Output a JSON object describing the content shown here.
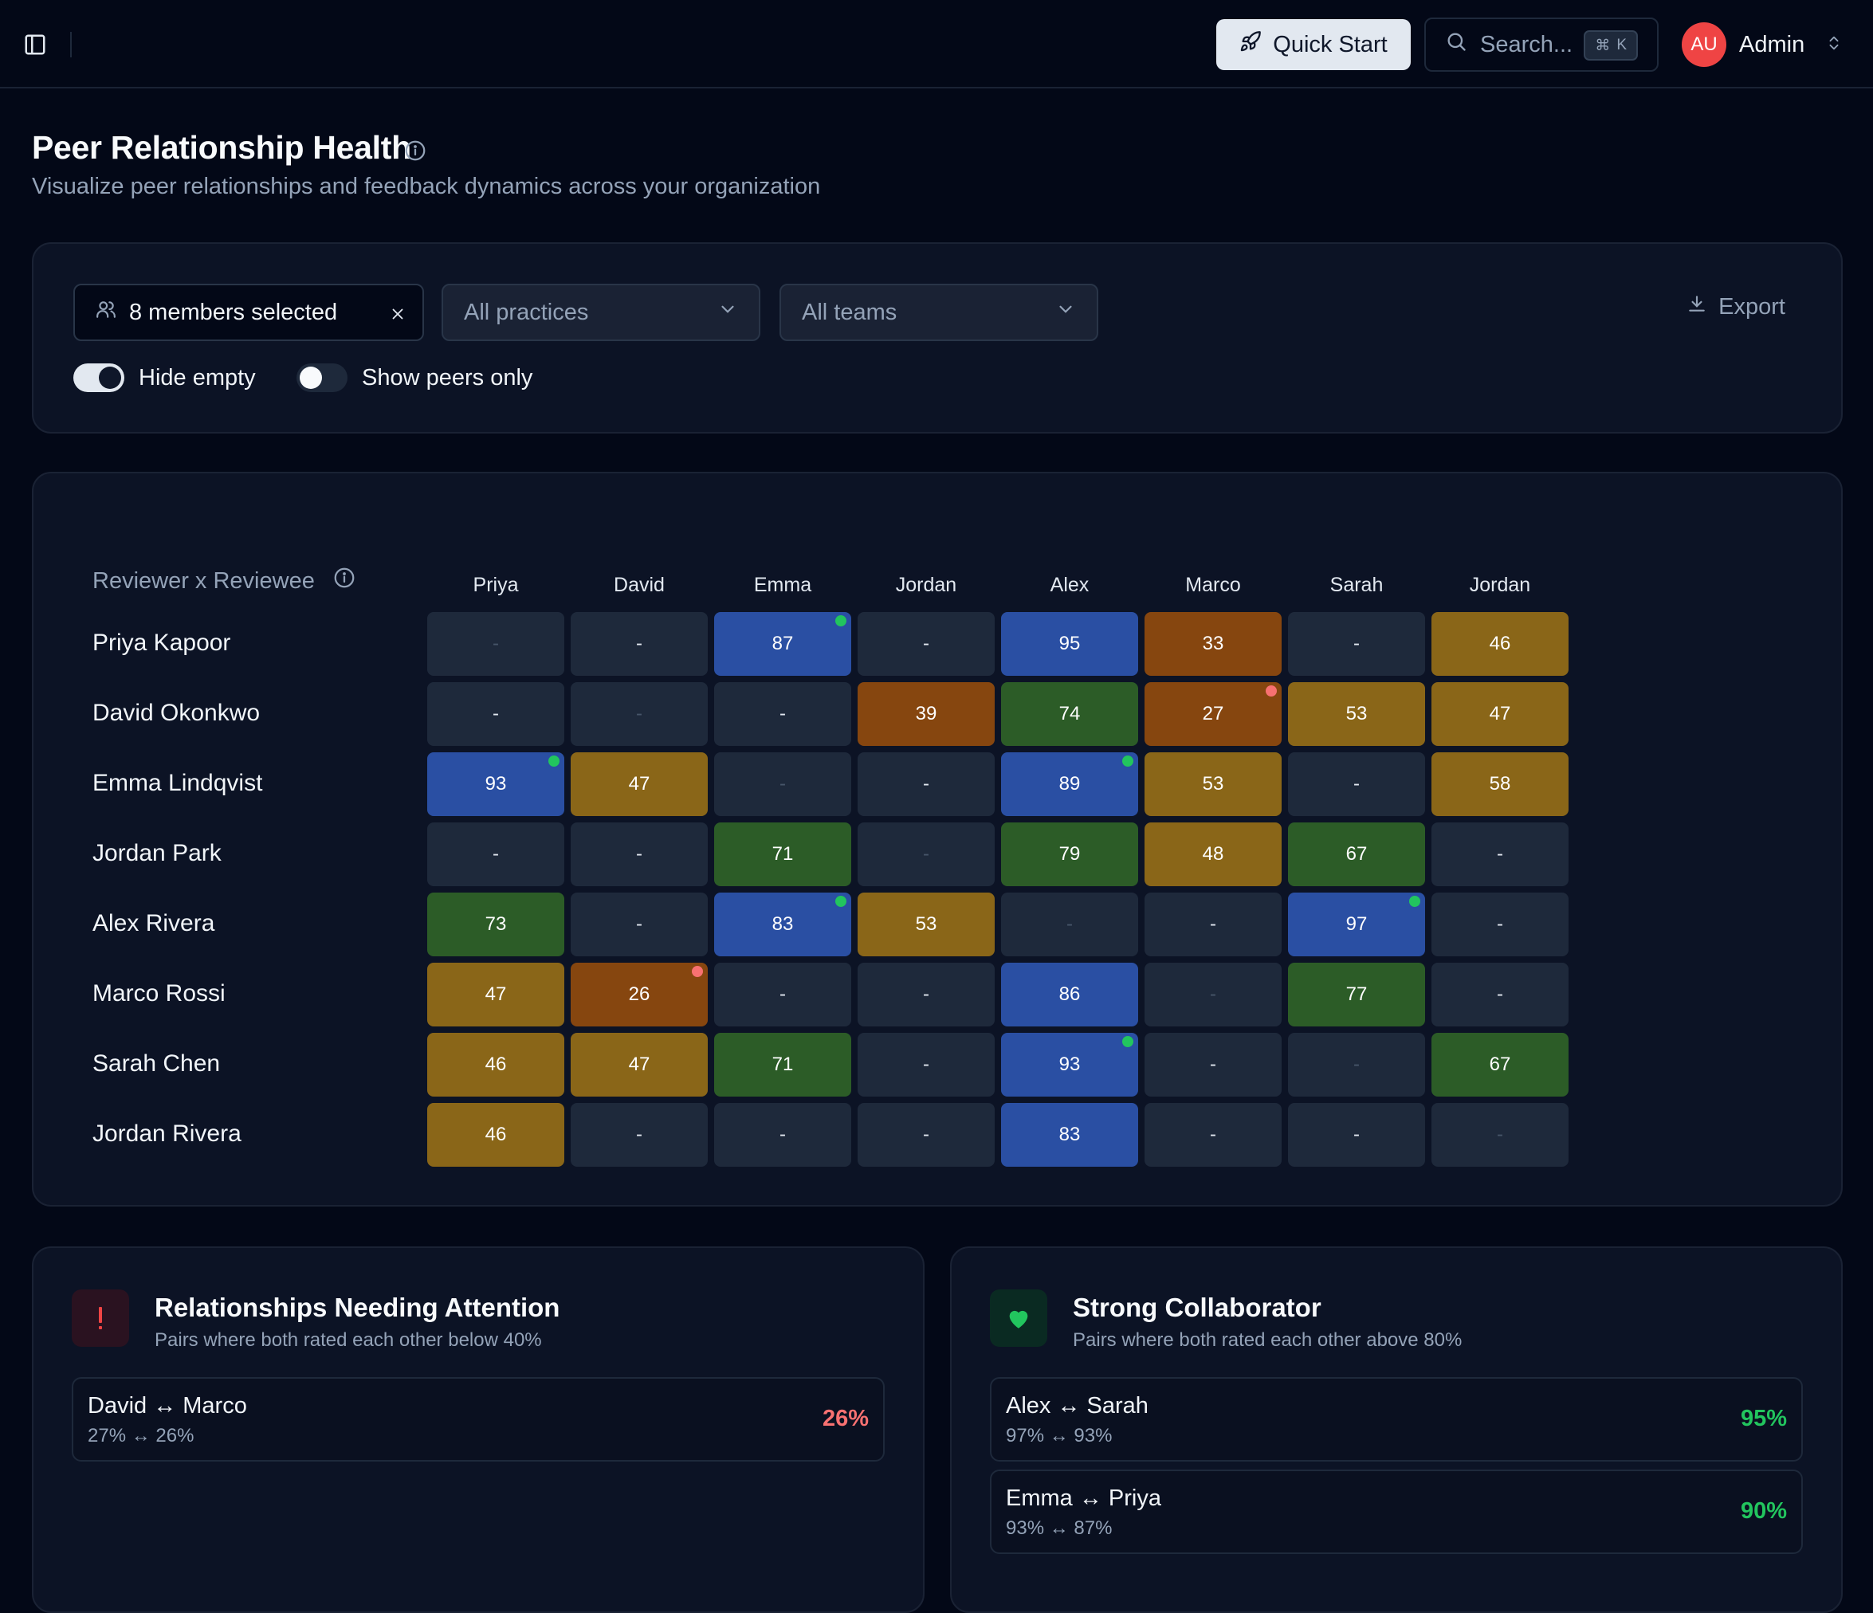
{
  "topbar": {
    "quick_start_label": "Quick Start",
    "search_placeholder": "Search...",
    "search_shortcut_symbol": "⌘",
    "search_shortcut_key": "K",
    "user_initials": "AU",
    "user_name": "Admin"
  },
  "header": {
    "title": "Peer Relationship Health",
    "subtitle": "Visualize peer relationships and feedback dynamics across your organization"
  },
  "filters": {
    "members_label": "8 members selected",
    "practices_label": "All practices",
    "teams_label": "All teams",
    "export_label": "Export",
    "hide_empty_label": "Hide empty",
    "hide_empty_on": true,
    "show_peers_label": "Show peers only",
    "show_peers_on": false
  },
  "matrix": {
    "corner_label": "Reviewer x Reviewee",
    "columns": [
      "Priya",
      "David",
      "Emma",
      "Jordan",
      "Alex",
      "Marco",
      "Sarah",
      "Jordan"
    ],
    "rows": [
      {
        "name": "Priya Kapoor",
        "cells": [
          {
            "v": "-",
            "t": "self"
          },
          {
            "v": "-",
            "t": "empty"
          },
          {
            "v": "87",
            "t": "blue",
            "d": "green"
          },
          {
            "v": "-",
            "t": "empty"
          },
          {
            "v": "95",
            "t": "blue"
          },
          {
            "v": "33",
            "t": "orange"
          },
          {
            "v": "-",
            "t": "empty"
          },
          {
            "v": "46",
            "t": "gold"
          }
        ]
      },
      {
        "name": "David Okonkwo",
        "cells": [
          {
            "v": "-",
            "t": "empty"
          },
          {
            "v": "-",
            "t": "self"
          },
          {
            "v": "-",
            "t": "empty"
          },
          {
            "v": "39",
            "t": "orange"
          },
          {
            "v": "74",
            "t": "green"
          },
          {
            "v": "27",
            "t": "orange",
            "d": "red"
          },
          {
            "v": "53",
            "t": "gold"
          },
          {
            "v": "47",
            "t": "gold"
          }
        ]
      },
      {
        "name": "Emma Lindqvist",
        "cells": [
          {
            "v": "93",
            "t": "blue",
            "d": "green"
          },
          {
            "v": "47",
            "t": "gold"
          },
          {
            "v": "-",
            "t": "self"
          },
          {
            "v": "-",
            "t": "empty"
          },
          {
            "v": "89",
            "t": "blue",
            "d": "green"
          },
          {
            "v": "53",
            "t": "gold"
          },
          {
            "v": "-",
            "t": "empty"
          },
          {
            "v": "58",
            "t": "gold"
          }
        ]
      },
      {
        "name": "Jordan Park",
        "cells": [
          {
            "v": "-",
            "t": "empty"
          },
          {
            "v": "-",
            "t": "empty"
          },
          {
            "v": "71",
            "t": "green"
          },
          {
            "v": "-",
            "t": "self"
          },
          {
            "v": "79",
            "t": "green"
          },
          {
            "v": "48",
            "t": "gold"
          },
          {
            "v": "67",
            "t": "green"
          },
          {
            "v": "-",
            "t": "empty"
          }
        ]
      },
      {
        "name": "Alex Rivera",
        "cells": [
          {
            "v": "73",
            "t": "green"
          },
          {
            "v": "-",
            "t": "empty"
          },
          {
            "v": "83",
            "t": "blue",
            "d": "green"
          },
          {
            "v": "53",
            "t": "gold"
          },
          {
            "v": "-",
            "t": "self"
          },
          {
            "v": "-",
            "t": "empty"
          },
          {
            "v": "97",
            "t": "blue",
            "d": "green"
          },
          {
            "v": "-",
            "t": "empty"
          }
        ]
      },
      {
        "name": "Marco Rossi",
        "cells": [
          {
            "v": "47",
            "t": "gold"
          },
          {
            "v": "26",
            "t": "orange",
            "d": "red"
          },
          {
            "v": "-",
            "t": "empty"
          },
          {
            "v": "-",
            "t": "empty"
          },
          {
            "v": "86",
            "t": "blue"
          },
          {
            "v": "-",
            "t": "self"
          },
          {
            "v": "77",
            "t": "green"
          },
          {
            "v": "-",
            "t": "empty"
          }
        ]
      },
      {
        "name": "Sarah Chen",
        "cells": [
          {
            "v": "46",
            "t": "gold"
          },
          {
            "v": "47",
            "t": "gold"
          },
          {
            "v": "71",
            "t": "green"
          },
          {
            "v": "-",
            "t": "empty"
          },
          {
            "v": "93",
            "t": "blue",
            "d": "green"
          },
          {
            "v": "-",
            "t": "empty"
          },
          {
            "v": "-",
            "t": "self"
          },
          {
            "v": "67",
            "t": "green"
          }
        ]
      },
      {
        "name": "Jordan Rivera",
        "cells": [
          {
            "v": "46",
            "t": "gold"
          },
          {
            "v": "-",
            "t": "empty"
          },
          {
            "v": "-",
            "t": "empty"
          },
          {
            "v": "-",
            "t": "empty"
          },
          {
            "v": "83",
            "t": "blue"
          },
          {
            "v": "-",
            "t": "empty"
          },
          {
            "v": "-",
            "t": "empty"
          },
          {
            "v": "-",
            "t": "self"
          }
        ]
      }
    ],
    "colors": {
      "blue": "#2a4fa3",
      "green": "#2c5c27",
      "gold": "#8a6618",
      "orange": "#86460f",
      "empty": "#1e293b",
      "dot_green": "#22c55e",
      "dot_red": "#f87171"
    }
  },
  "attention": {
    "icon": "exclamation-icon",
    "title": "Relationships Needing Attention",
    "subtitle": "Pairs where both rated each other below 40%",
    "pairs": [
      {
        "names": "David ↔ Marco",
        "scores": "27% ↔ 26%",
        "value": "26%"
      }
    ],
    "value_color": "#f87171"
  },
  "collab": {
    "icon": "heart-icon",
    "title": "Strong Collaborator",
    "subtitle": "Pairs where both rated each other above 80%",
    "pairs": [
      {
        "names": "Alex ↔ Sarah",
        "scores": "97% ↔ 93%",
        "value": "95%"
      },
      {
        "names": "Emma ↔ Priya",
        "scores": "93% ↔ 87%",
        "value": "90%"
      }
    ],
    "value_color": "#22c55e"
  }
}
